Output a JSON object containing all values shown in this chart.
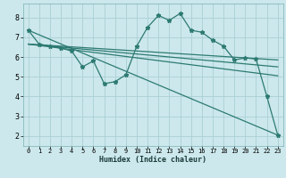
{
  "xlabel": "Humidex (Indice chaleur)",
  "bg_color": "#cce8ec",
  "grid_color": "#aad0d5",
  "line_color": "#2d7a72",
  "xlim": [
    -0.5,
    23.5
  ],
  "ylim": [
    1.5,
    8.7
  ],
  "xticks": [
    0,
    1,
    2,
    3,
    4,
    5,
    6,
    7,
    8,
    9,
    10,
    11,
    12,
    13,
    14,
    15,
    16,
    17,
    18,
    19,
    20,
    21,
    22,
    23
  ],
  "yticks": [
    2,
    3,
    4,
    5,
    6,
    7,
    8
  ],
  "series": [
    {
      "x": [
        0,
        1,
        2,
        3,
        4,
        5,
        6,
        7,
        8,
        9,
        10,
        11,
        12,
        13,
        14,
        15,
        16,
        17,
        18,
        19,
        20,
        21,
        22,
        23
      ],
      "y": [
        7.35,
        6.65,
        6.55,
        6.45,
        6.3,
        5.5,
        5.8,
        4.65,
        4.75,
        5.1,
        6.55,
        7.5,
        8.1,
        7.85,
        8.2,
        7.35,
        7.25,
        6.85,
        6.55,
        5.85,
        5.95,
        5.9,
        4.0,
        2.05
      ],
      "marker": true,
      "lw": 0.9
    },
    {
      "x": [
        0,
        23
      ],
      "y": [
        7.35,
        2.05
      ],
      "marker": false,
      "lw": 0.9
    },
    {
      "x": [
        0,
        23
      ],
      "y": [
        6.65,
        5.05
      ],
      "marker": false,
      "lw": 0.9
    },
    {
      "x": [
        0,
        23
      ],
      "y": [
        6.65,
        5.5
      ],
      "marker": false,
      "lw": 0.9
    },
    {
      "x": [
        0,
        23
      ],
      "y": [
        6.65,
        5.85
      ],
      "marker": false,
      "lw": 0.9
    }
  ]
}
